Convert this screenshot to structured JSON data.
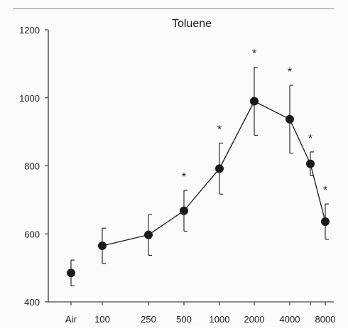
{
  "chart_data": {
    "type": "line",
    "title": "Toluene",
    "xlabel": "",
    "ylabel": "",
    "categories": [
      "Air",
      "100",
      "250",
      "500",
      "1000",
      "2000",
      "4000",
      "",
      "8000"
    ],
    "y_ticks": [
      "400",
      "600",
      "800",
      "1000",
      "1200"
    ],
    "ylim": [
      400,
      1200
    ],
    "grid": false,
    "series": [
      {
        "values": [
          485,
          565,
          597,
          668,
          792,
          990,
          937,
          806,
          636
        ],
        "error": [
          38,
          52,
          60,
          60,
          75,
          100,
          100,
          35,
          52
        ],
        "significant": [
          false,
          false,
          false,
          true,
          true,
          true,
          true,
          true,
          true
        ],
        "connected_from_index": 1
      }
    ],
    "marker_label": "*",
    "colors": {
      "ink": "#1a1a1a",
      "background": "#fbfbfa"
    }
  }
}
